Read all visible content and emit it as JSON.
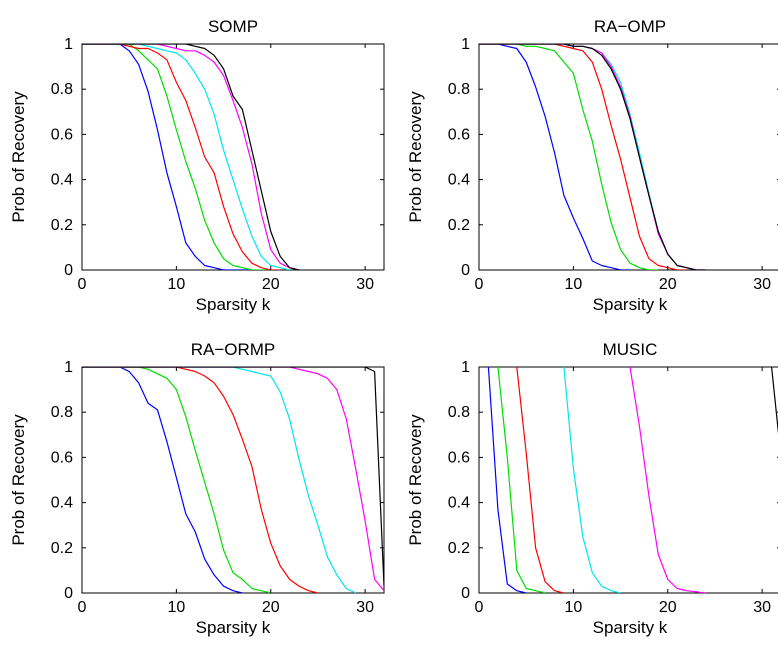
{
  "chart_data": [
    {
      "type": "line",
      "title": "SOMP",
      "xlabel": "Sparsity k",
      "ylabel": "Prob of Recovery",
      "xlim": [
        0,
        32
      ],
      "ylim": [
        0,
        1
      ],
      "xticks": [
        "0",
        "10",
        "20",
        "30"
      ],
      "yticks": [
        "0",
        "0.2",
        "0.4",
        "0.6",
        "0.8",
        "1"
      ],
      "grid": false,
      "series": [
        {
          "color": "#0000ff",
          "x": [
            0,
            2,
            4,
            5,
            6,
            7,
            8,
            9,
            10,
            11,
            12,
            13,
            14,
            15,
            16,
            17,
            18
          ],
          "y": [
            1,
            1,
            1,
            0.97,
            0.91,
            0.79,
            0.62,
            0.43,
            0.28,
            0.12,
            0.06,
            0.02,
            0.01,
            0,
            0,
            0,
            0
          ]
        },
        {
          "color": "#00dd00",
          "x": [
            0,
            4,
            5,
            6,
            7,
            8,
            9,
            10,
            11,
            12,
            13,
            14,
            15,
            16,
            17,
            18,
            19,
            20
          ],
          "y": [
            1,
            1,
            1,
            0.97,
            0.93,
            0.89,
            0.77,
            0.62,
            0.48,
            0.36,
            0.22,
            0.12,
            0.05,
            0.02,
            0.01,
            0,
            0,
            0
          ]
        },
        {
          "color": "#ff0000",
          "x": [
            0,
            4,
            5,
            6,
            7,
            8,
            9,
            10,
            11,
            12,
            13,
            14,
            15,
            16,
            17,
            18,
            19,
            20,
            21
          ],
          "y": [
            1,
            1,
            0.99,
            0.98,
            0.98,
            0.96,
            0.93,
            0.83,
            0.75,
            0.63,
            0.5,
            0.43,
            0.28,
            0.16,
            0.08,
            0.03,
            0.01,
            0,
            0
          ]
        },
        {
          "color": "#00e5ee",
          "x": [
            0,
            6,
            7,
            8,
            9,
            10,
            11,
            12,
            13,
            14,
            15,
            16,
            17,
            18,
            19,
            20,
            21,
            22
          ],
          "y": [
            1,
            1,
            0.99,
            0.98,
            0.97,
            0.96,
            0.93,
            0.87,
            0.8,
            0.69,
            0.53,
            0.4,
            0.27,
            0.15,
            0.06,
            0.02,
            0.01,
            0
          ]
        },
        {
          "color": "#ff00ff",
          "x": [
            0,
            8,
            9,
            10,
            11,
            12,
            13,
            14,
            15,
            16,
            17,
            18,
            19,
            20,
            21,
            22,
            23
          ],
          "y": [
            1,
            1,
            0.99,
            0.98,
            0.97,
            0.97,
            0.95,
            0.92,
            0.86,
            0.75,
            0.63,
            0.47,
            0.25,
            0.09,
            0.03,
            0.01,
            0
          ]
        },
        {
          "color": "#000000",
          "x": [
            0,
            10,
            11,
            12,
            13,
            14,
            15,
            16,
            17,
            18,
            19,
            20,
            21,
            22,
            23
          ],
          "y": [
            1,
            1,
            1,
            0.99,
            0.98,
            0.95,
            0.89,
            0.77,
            0.71,
            0.53,
            0.35,
            0.17,
            0.06,
            0.01,
            0
          ]
        }
      ]
    },
    {
      "type": "line",
      "title": "RA−OMP",
      "xlabel": "Sparsity k",
      "ylabel": "Prob of Recovery",
      "xlim": [
        0,
        32
      ],
      "ylim": [
        0,
        1
      ],
      "xticks": [
        "0",
        "10",
        "20",
        "30"
      ],
      "yticks": [
        "0",
        "0.2",
        "0.4",
        "0.6",
        "0.8",
        "1"
      ],
      "grid": false,
      "series": [
        {
          "color": "#0000ff",
          "x": [
            0,
            2,
            3,
            4,
            5,
            6,
            7,
            8,
            9,
            10,
            11,
            12,
            13,
            14,
            15,
            16
          ],
          "y": [
            1,
            1,
            0.99,
            0.98,
            0.92,
            0.81,
            0.68,
            0.52,
            0.33,
            0.23,
            0.14,
            0.04,
            0.02,
            0.01,
            0,
            0
          ]
        },
        {
          "color": "#00dd00",
          "x": [
            0,
            4,
            5,
            6,
            7,
            8,
            9,
            10,
            11,
            12,
            13,
            14,
            15,
            16,
            17,
            18,
            19
          ],
          "y": [
            1,
            1,
            0.99,
            0.99,
            0.98,
            0.97,
            0.92,
            0.87,
            0.71,
            0.57,
            0.38,
            0.21,
            0.09,
            0.03,
            0.01,
            0,
            0
          ]
        },
        {
          "color": "#ff0000",
          "x": [
            0,
            8,
            9,
            10,
            11,
            12,
            13,
            14,
            15,
            16,
            17,
            18,
            19,
            20,
            21,
            22
          ],
          "y": [
            1,
            1,
            0.99,
            0.98,
            0.97,
            0.92,
            0.8,
            0.64,
            0.49,
            0.32,
            0.15,
            0.05,
            0.02,
            0.01,
            0,
            0
          ]
        },
        {
          "color": "#00e5ee",
          "x": [
            0,
            8,
            9,
            10,
            11,
            12,
            13,
            14,
            15,
            16,
            17,
            18,
            19,
            20,
            21,
            22,
            23,
            24
          ],
          "y": [
            1,
            1,
            1,
            0.99,
            0.99,
            0.98,
            0.96,
            0.91,
            0.83,
            0.69,
            0.52,
            0.34,
            0.17,
            0.07,
            0.02,
            0.01,
            0,
            0
          ]
        },
        {
          "color": "#ff00ff",
          "x": [
            0,
            8,
            9,
            10,
            11,
            12,
            13,
            14,
            15,
            16,
            17,
            18,
            19,
            20,
            21,
            22,
            23,
            24
          ],
          "y": [
            1,
            1,
            1,
            0.99,
            0.99,
            0.98,
            0.96,
            0.9,
            0.81,
            0.68,
            0.5,
            0.33,
            0.16,
            0.07,
            0.02,
            0.01,
            0,
            0
          ]
        },
        {
          "color": "#000000",
          "x": [
            0,
            8,
            9,
            10,
            11,
            12,
            13,
            14,
            15,
            16,
            17,
            18,
            19,
            20,
            21,
            22,
            23,
            24
          ],
          "y": [
            1,
            1,
            1,
            0.99,
            0.99,
            0.98,
            0.95,
            0.89,
            0.8,
            0.67,
            0.5,
            0.33,
            0.17,
            0.07,
            0.02,
            0.01,
            0,
            0
          ]
        }
      ]
    },
    {
      "type": "line",
      "title": "RA−ORMP",
      "xlabel": "Sparsity k",
      "ylabel": "Prob of Recovery",
      "xlim": [
        0,
        32
      ],
      "ylim": [
        0,
        1
      ],
      "xticks": [
        "0",
        "10",
        "20",
        "30"
      ],
      "yticks": [
        "0",
        "0.2",
        "0.4",
        "0.6",
        "0.8",
        "1"
      ],
      "grid": false,
      "series": [
        {
          "color": "#0000ff",
          "x": [
            0,
            4,
            5,
            6,
            7,
            8,
            9,
            10,
            11,
            12,
            13,
            14,
            15,
            16,
            17
          ],
          "y": [
            1,
            1,
            0.98,
            0.93,
            0.84,
            0.81,
            0.67,
            0.51,
            0.35,
            0.27,
            0.15,
            0.08,
            0.03,
            0.01,
            0
          ]
        },
        {
          "color": "#00dd00",
          "x": [
            0,
            6,
            7,
            8,
            9,
            10,
            11,
            12,
            13,
            14,
            15,
            16,
            17,
            18,
            19,
            20
          ],
          "y": [
            1,
            1,
            0.99,
            0.97,
            0.95,
            0.9,
            0.78,
            0.63,
            0.49,
            0.35,
            0.19,
            0.09,
            0.06,
            0.02,
            0.01,
            0
          ]
        },
        {
          "color": "#ff0000",
          "x": [
            0,
            10,
            11,
            12,
            13,
            14,
            15,
            16,
            17,
            18,
            19,
            20,
            21,
            22,
            23,
            24,
            25
          ],
          "y": [
            1,
            1,
            0.99,
            0.98,
            0.96,
            0.93,
            0.87,
            0.79,
            0.68,
            0.56,
            0.37,
            0.22,
            0.12,
            0.06,
            0.03,
            0.01,
            0
          ]
        },
        {
          "color": "#00e5ee",
          "x": [
            0,
            16,
            17,
            18,
            19,
            20,
            21,
            22,
            23,
            24,
            25,
            26,
            27,
            28,
            29
          ],
          "y": [
            1,
            1,
            0.99,
            0.98,
            0.97,
            0.96,
            0.89,
            0.77,
            0.59,
            0.43,
            0.3,
            0.16,
            0.08,
            0.02,
            0
          ]
        },
        {
          "color": "#ff00ff",
          "x": [
            0,
            22,
            23,
            24,
            25,
            26,
            27,
            28,
            29,
            30,
            31,
            32
          ],
          "y": [
            1,
            1,
            0.99,
            0.98,
            0.97,
            0.95,
            0.9,
            0.77,
            0.55,
            0.32,
            0.06,
            0.01
          ]
        },
        {
          "color": "#000000",
          "x": [
            0,
            30,
            31,
            32
          ],
          "y": [
            1,
            1,
            0.98,
            0.03
          ]
        }
      ]
    },
    {
      "type": "line",
      "title": "MUSIC",
      "xlabel": "Sparsity k",
      "ylabel": "Prob of Recovery",
      "xlim": [
        0,
        32
      ],
      "ylim": [
        0,
        1
      ],
      "xticks": [
        "0",
        "10",
        "20",
        "30"
      ],
      "yticks": [
        "0",
        "0.2",
        "0.4",
        "0.6",
        "0.8",
        "1"
      ],
      "grid": false,
      "series": [
        {
          "color": "#0000ff",
          "x": [
            1,
            2,
            3,
            4,
            5
          ],
          "y": [
            1,
            0.37,
            0.04,
            0.01,
            0
          ]
        },
        {
          "color": "#00dd00",
          "x": [
            2,
            3,
            4,
            5,
            6,
            7
          ],
          "y": [
            1,
            0.6,
            0.1,
            0.02,
            0.01,
            0
          ]
        },
        {
          "color": "#ff0000",
          "x": [
            4,
            5,
            6,
            7,
            8,
            9
          ],
          "y": [
            1,
            0.62,
            0.2,
            0.05,
            0.01,
            0
          ]
        },
        {
          "color": "#00e5ee",
          "x": [
            9,
            10,
            11,
            12,
            13,
            14,
            15
          ],
          "y": [
            1,
            0.55,
            0.25,
            0.09,
            0.03,
            0.01,
            0
          ]
        },
        {
          "color": "#ff00ff",
          "x": [
            16,
            17,
            18,
            19,
            20,
            21,
            22,
            24
          ],
          "y": [
            1,
            0.74,
            0.43,
            0.17,
            0.06,
            0.02,
            0.01,
            0
          ]
        },
        {
          "color": "#000000",
          "x": [
            31,
            32
          ],
          "y": [
            1,
            0.6
          ]
        }
      ]
    }
  ]
}
